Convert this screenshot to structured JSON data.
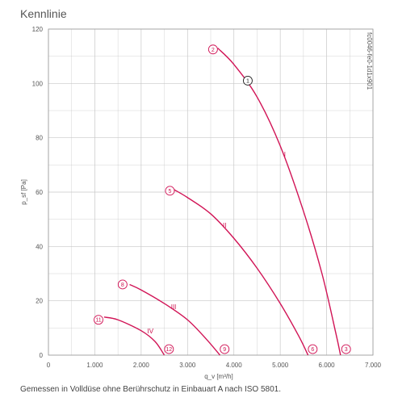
{
  "title": "Kennlinie",
  "footnote": "Gemessen in Volldüse ohne Berührschutz in Einbauart A nach ISO 5801.",
  "side_code": "fc0046-fe0-1d1x901",
  "colors": {
    "curve": "#d11456",
    "grid": "#c8c8c8",
    "text": "#555555"
  },
  "chart_data": {
    "type": "line",
    "title": "Kennlinie",
    "xlabel": "q_v [m³/h]",
    "ylabel": "p_sf [Pa]",
    "xlim": [
      0,
      7000
    ],
    "ylim": [
      0,
      120
    ],
    "x_ticks": [
      {
        "value": 0,
        "label": "0"
      },
      {
        "value": 1000,
        "label": "1.000"
      },
      {
        "value": 2000,
        "label": "2.000"
      },
      {
        "value": 3000,
        "label": "3.000"
      },
      {
        "value": 4000,
        "label": "4.000"
      },
      {
        "value": 5000,
        "label": "5.000"
      },
      {
        "value": 6000,
        "label": "6.000"
      },
      {
        "value": 7000,
        "label": "7.000"
      }
    ],
    "y_ticks": [
      {
        "value": 0,
        "label": "0"
      },
      {
        "value": 20,
        "label": "20"
      },
      {
        "value": 40,
        "label": "40"
      },
      {
        "value": 60,
        "label": "60"
      },
      {
        "value": 80,
        "label": "80"
      },
      {
        "value": 100,
        "label": "100"
      },
      {
        "value": 120,
        "label": "120"
      }
    ],
    "grid": true,
    "series": [
      {
        "name": "I",
        "label_at": [
          5100,
          73
        ],
        "x": [
          3650,
          4000,
          4500,
          5000,
          5500,
          5900,
          6200,
          6300
        ],
        "y": [
          113,
          107,
          95,
          77,
          53,
          30,
          8,
          0
        ]
      },
      {
        "name": "II",
        "label_at": [
          3800,
          47
        ],
        "x": [
          2700,
          3000,
          3500,
          4000,
          4500,
          5000,
          5400,
          5600
        ],
        "y": [
          61,
          58,
          52,
          43,
          32,
          19,
          7,
          0
        ]
      },
      {
        "name": "III",
        "label_at": [
          2700,
          17
        ],
        "x": [
          1750,
          2000,
          2500,
          3000,
          3400,
          3700
        ],
        "y": [
          26,
          24,
          19,
          13,
          6,
          0
        ]
      },
      {
        "name": "IV",
        "label_at": [
          2200,
          8
        ],
        "x": [
          1200,
          1500,
          2000,
          2300,
          2500
        ],
        "y": [
          14,
          13,
          9,
          5,
          0
        ]
      }
    ],
    "points": [
      {
        "label": "2",
        "x": 3550,
        "y": 112.5,
        "color": "curve"
      },
      {
        "label": "1",
        "x": 4300,
        "y": 101,
        "color": "black"
      },
      {
        "label": "3",
        "x": 6420,
        "y": 2.2,
        "color": "curve"
      },
      {
        "label": "5",
        "x": 2620,
        "y": 60.5,
        "color": "curve"
      },
      {
        "label": "6",
        "x": 5700,
        "y": 2.2,
        "color": "curve"
      },
      {
        "label": "8",
        "x": 1600,
        "y": 26,
        "color": "curve"
      },
      {
        "label": "9",
        "x": 3800,
        "y": 2.2,
        "color": "curve"
      },
      {
        "label": "11",
        "x": 1080,
        "y": 13,
        "color": "curve"
      },
      {
        "label": "12",
        "x": 2600,
        "y": 2.2,
        "color": "curve"
      }
    ]
  }
}
